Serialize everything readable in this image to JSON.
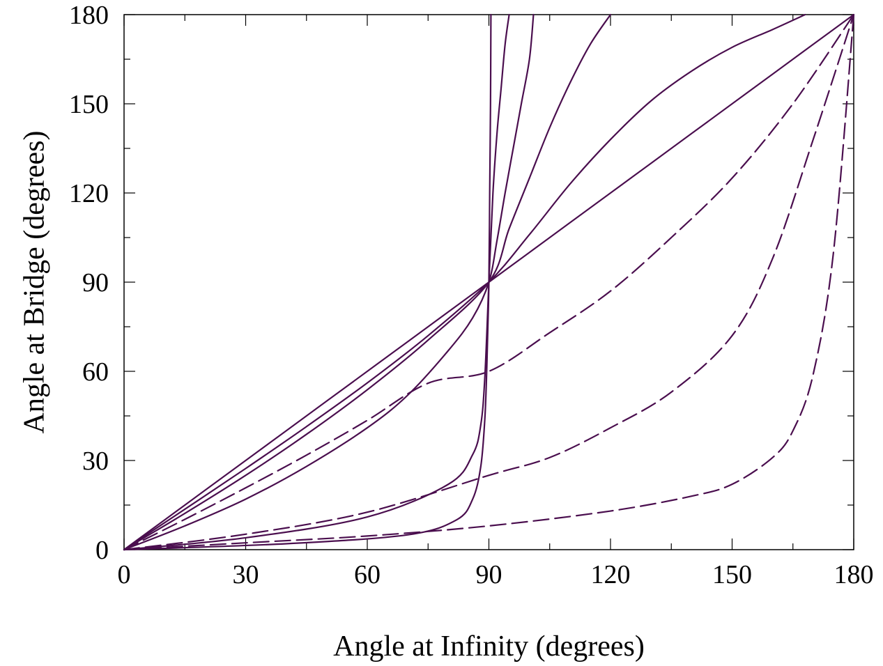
{
  "chart_data": {
    "type": "line",
    "title": "",
    "xlabel": "Angle at Infinity (degrees)",
    "ylabel": "Angle at Bridge (degrees)",
    "xlim": [
      0,
      180
    ],
    "ylim": [
      0,
      180
    ],
    "xticks": [
      0,
      30,
      60,
      90,
      120,
      150,
      180
    ],
    "yticks": [
      0,
      30,
      60,
      90,
      120,
      150,
      180
    ],
    "x_tick_labels": [
      "0",
      "30",
      "60",
      "90",
      "120",
      "150",
      "180"
    ],
    "y_tick_labels": [
      "0",
      "30",
      "60",
      "90",
      "120",
      "150",
      "180"
    ],
    "x_minor_step": 15,
    "y_minor_step": 15,
    "grid": false,
    "legend": "none",
    "line_color": "#4a0e4e",
    "series": [
      {
        "style": "solid",
        "points": [
          [
            0,
            0
          ],
          [
            10,
            10
          ],
          [
            20,
            20
          ],
          [
            30,
            30
          ],
          [
            40,
            40
          ],
          [
            50,
            50
          ],
          [
            60,
            60
          ],
          [
            70,
            70
          ],
          [
            80,
            80
          ],
          [
            90,
            90
          ],
          [
            100,
            100
          ],
          [
            110,
            110
          ],
          [
            120,
            120
          ],
          [
            130,
            130
          ],
          [
            140,
            140
          ],
          [
            150,
            150
          ],
          [
            160,
            160
          ],
          [
            170,
            170
          ],
          [
            180,
            180
          ]
        ]
      },
      {
        "style": "solid",
        "points": [
          [
            0,
            0
          ],
          [
            15,
            13.6
          ],
          [
            30,
            27.3
          ],
          [
            45,
            41.4
          ],
          [
            60,
            56.1
          ],
          [
            75,
            72
          ],
          [
            90,
            90
          ],
          [
            100,
            106
          ],
          [
            110,
            123
          ],
          [
            120,
            138
          ],
          [
            130,
            151
          ],
          [
            140,
            161
          ],
          [
            150,
            169
          ],
          [
            160,
            175
          ],
          [
            168,
            180
          ]
        ]
      },
      {
        "style": "solid",
        "points": [
          [
            0,
            0
          ],
          [
            15,
            12.2
          ],
          [
            30,
            25
          ],
          [
            45,
            38.8
          ],
          [
            60,
            53.8
          ],
          [
            75,
            70.5
          ],
          [
            90,
            90
          ],
          [
            95,
            108
          ],
          [
            100,
            125
          ],
          [
            105,
            142
          ],
          [
            110,
            157
          ],
          [
            115,
            170
          ],
          [
            120,
            180
          ]
        ]
      },
      {
        "style": "solid",
        "points": [
          [
            0,
            0
          ],
          [
            15,
            8
          ],
          [
            30,
            17
          ],
          [
            45,
            28
          ],
          [
            60,
            41
          ],
          [
            70,
            52
          ],
          [
            80,
            67
          ],
          [
            86,
            78
          ],
          [
            90,
            90
          ],
          [
            92,
            104
          ],
          [
            94,
            120
          ],
          [
            96,
            135
          ],
          [
            98,
            150
          ],
          [
            100,
            165
          ],
          [
            101,
            180
          ]
        ]
      },
      {
        "style": "solid",
        "points": [
          [
            0,
            0
          ],
          [
            30,
            4
          ],
          [
            60,
            11
          ],
          [
            80,
            22
          ],
          [
            86,
            32
          ],
          [
            88,
            42
          ],
          [
            89,
            58
          ],
          [
            90,
            90
          ],
          [
            91,
            120
          ],
          [
            92,
            140
          ],
          [
            93,
            155
          ],
          [
            94,
            170
          ],
          [
            95,
            180
          ]
        ]
      },
      {
        "style": "solid",
        "points": [
          [
            0,
            0
          ],
          [
            40,
            2
          ],
          [
            70,
            5
          ],
          [
            82,
            10
          ],
          [
            86,
            17
          ],
          [
            88,
            28
          ],
          [
            89,
            44
          ],
          [
            89.5,
            62
          ],
          [
            90,
            90
          ],
          [
            90.2,
            120
          ],
          [
            90.4,
            150
          ],
          [
            90.5,
            180
          ]
        ]
      },
      {
        "style": "dashed",
        "points": [
          [
            0,
            0
          ],
          [
            15,
            10.2
          ],
          [
            30,
            20.8
          ],
          [
            45,
            31.8
          ],
          [
            60,
            43.5
          ],
          [
            75,
            56
          ],
          [
            90,
            60
          ],
          [
            105,
            73
          ],
          [
            120,
            87
          ],
          [
            135,
            105
          ],
          [
            150,
            125
          ],
          [
            165,
            150
          ],
          [
            180,
            180
          ]
        ]
      },
      {
        "style": "dashed",
        "points": [
          [
            0,
            0
          ],
          [
            30,
            5.2
          ],
          [
            60,
            12.6
          ],
          [
            90,
            25
          ],
          [
            105,
            31
          ],
          [
            120,
            41
          ],
          [
            135,
            53
          ],
          [
            150,
            72
          ],
          [
            160,
            98
          ],
          [
            170,
            138
          ],
          [
            180,
            180
          ]
        ]
      },
      {
        "style": "dashed",
        "points": [
          [
            0,
            0
          ],
          [
            30,
            2.3
          ],
          [
            60,
            4.6
          ],
          [
            90,
            8
          ],
          [
            120,
            13
          ],
          [
            140,
            18
          ],
          [
            150,
            22
          ],
          [
            160,
            31
          ],
          [
            165,
            40
          ],
          [
            170,
            59
          ],
          [
            175,
            100
          ],
          [
            180,
            180
          ]
        ]
      }
    ]
  }
}
